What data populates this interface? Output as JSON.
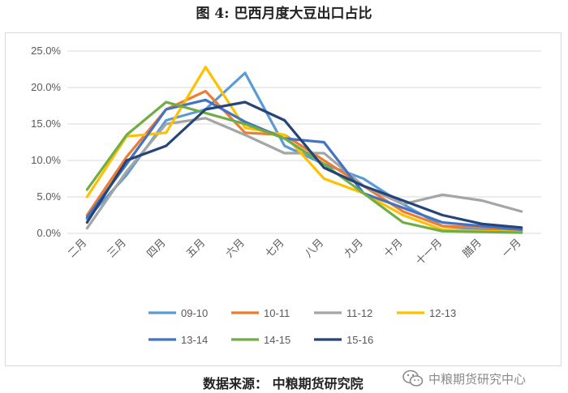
{
  "title": "图 4:  巴西月度大豆出口占比",
  "source": "数据来源：  中粮期货研究院",
  "watermark": "中粮期货研究中心",
  "chart_data": {
    "type": "line",
    "title": "图 4:  巴西月度大豆出口占比",
    "xlabel": "",
    "ylabel": "",
    "ylim": [
      0,
      25
    ],
    "ytick_labels": [
      "0.0%",
      "5.0%",
      "10.0%",
      "15.0%",
      "20.0%",
      "25.0%"
    ],
    "grid": true,
    "legend_position": "bottom",
    "categories": [
      "二月",
      "三月",
      "四月",
      "五月",
      "六月",
      "七月",
      "八月",
      "九月",
      "十月",
      "十一月",
      "腊月",
      "一月"
    ],
    "series": [
      {
        "name": "09-10",
        "color": "#5b9bd5",
        "values": [
          2.0,
          8.0,
          15.5,
          17.0,
          22.0,
          12.0,
          9.5,
          7.5,
          4.0,
          1.0,
          0.5,
          0.3
        ]
      },
      {
        "name": "10-11",
        "color": "#ed7d31",
        "values": [
          2.5,
          10.5,
          17.0,
          19.5,
          13.8,
          13.5,
          10.0,
          6.5,
          3.0,
          1.0,
          0.8,
          0.5
        ]
      },
      {
        "name": "11-12",
        "color": "#a5a5a5",
        "values": [
          0.7,
          8.5,
          15.0,
          15.8,
          13.5,
          11.0,
          11.0,
          6.5,
          4.0,
          5.3,
          4.5,
          3.0
        ]
      },
      {
        "name": "12-13",
        "color": "#ffc000",
        "values": [
          5.0,
          13.3,
          13.8,
          22.8,
          14.5,
          13.5,
          7.5,
          5.5,
          2.5,
          0.5,
          0.3,
          0.2
        ]
      },
      {
        "name": "13-14",
        "color": "#4472c4",
        "values": [
          2.2,
          9.5,
          17.0,
          18.3,
          15.3,
          13.0,
          12.5,
          5.5,
          3.5,
          1.5,
          1.0,
          0.5
        ]
      },
      {
        "name": "14-15",
        "color": "#70ad47",
        "values": [
          6.0,
          13.5,
          18.0,
          16.5,
          15.0,
          13.0,
          9.5,
          5.5,
          1.5,
          0.3,
          0.2,
          0.1
        ]
      },
      {
        "name": "15-16",
        "color": "#264478",
        "values": [
          1.5,
          10.0,
          12.0,
          17.0,
          18.0,
          15.5,
          9.0,
          6.5,
          4.5,
          2.5,
          1.3,
          0.8
        ]
      }
    ]
  }
}
